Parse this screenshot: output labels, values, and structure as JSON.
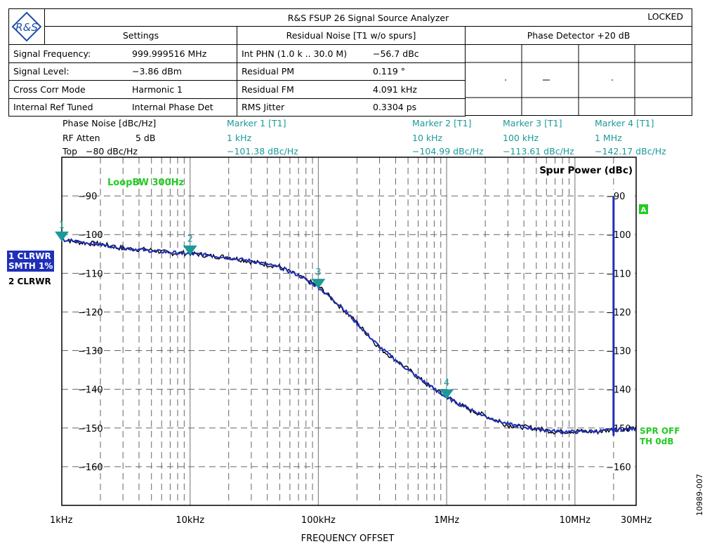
{
  "header": {
    "title": "R&S FSUP 26 Signal Source Analyzer",
    "status": "LOCKED",
    "logo_text": "R&S",
    "settings_title": "Settings",
    "residual_title": "Residual Noise [T1 w/o spurs]",
    "detector_title": "Phase Detector +20 dB",
    "settings_rows": [
      {
        "label": "Signal Frequency:",
        "value": "999.999516 MHz"
      },
      {
        "label": "Signal Level:",
        "value": "−3.86 dBm"
      },
      {
        "label": "Cross Corr Mode",
        "value": "Harmonic 1"
      },
      {
        "label": "Internal Ref Tuned",
        "value": "Internal Phase Det"
      }
    ],
    "residual_rows": [
      {
        "label": "Int PHN (1.0 k .. 30.0 M)",
        "value": "−56.7 dBc"
      },
      {
        "label": "Residual PM",
        "value": "0.119 °"
      },
      {
        "label": "Residual FM",
        "value": "4.091 kHz"
      },
      {
        "label": "RMS Jitter",
        "value": "0.3304 ps"
      }
    ]
  },
  "info": {
    "phase_noise_label": "Phase Noise [dBc/Hz]",
    "rf_atten_label": "RF Atten",
    "rf_atten_value": "5 dB",
    "top_label": "Top",
    "top_value": "−80 dBc/Hz"
  },
  "markers": [
    {
      "name": "Marker 1 [T1]",
      "freq": "1 kHz",
      "level": "−101.38 dBc/Hz"
    },
    {
      "name": "Marker 2 [T1]",
      "freq": "10 kHz",
      "level": "−104.99 dBc/Hz"
    },
    {
      "name": "Marker 3 [T1]",
      "freq": "100 kHz",
      "level": "−113.61 dBc/Hz"
    },
    {
      "name": "Marker 4 [T1]",
      "freq": "1 MHz",
      "level": "−142.17 dBc/Hz"
    }
  ],
  "trace_labels": {
    "trace1_line1": "1 CLRWR",
    "trace1_line2": "SMTH 1%",
    "trace2": "2 CLRWR",
    "loop_bw": "LoopBW 300Hz",
    "spur_power": "Spur Power (dBc)",
    "spr_off": "SPR OFF",
    "th": "TH 0dB",
    "a_badge": "A"
  },
  "figure_id": "10989-007",
  "colors": {
    "trace1": "#1f2fb8",
    "trace2": "#000000",
    "marker": "#1a9a9a",
    "green": "#22cc22"
  },
  "chart_data": {
    "type": "line",
    "xscale": "log",
    "xlim": [
      1000,
      30000000
    ],
    "ylim": [
      -170,
      -80
    ],
    "xlabel": "FREQUENCY OFFSET",
    "ylabel": "",
    "x_tick_values": [
      1000,
      10000,
      100000,
      1000000,
      10000000,
      30000000
    ],
    "x_tick_labels": [
      "1kHz",
      "10kHz",
      "100kHz",
      "1MHz",
      "10MHz",
      "30MHz"
    ],
    "y_tick_values": [
      -90,
      -100,
      -110,
      -120,
      -130,
      -140,
      -150,
      -160
    ],
    "y_tick_labels": [
      "−90",
      "−100",
      "−110",
      "−120",
      "−130",
      "−140",
      "−150",
      "−160"
    ],
    "grid": true,
    "series": [
      {
        "name": "1 CLRWR",
        "x": [
          1000,
          1500,
          2000,
          3000,
          5000,
          7000,
          10000,
          15000,
          20000,
          30000,
          50000,
          70000,
          100000,
          150000,
          200000,
          300000,
          500000,
          700000,
          1000000,
          1500000,
          2000000,
          3000000,
          5000000,
          7000000,
          10000000,
          15000000,
          20000000,
          30000000
        ],
        "y": [
          -101.4,
          -102.0,
          -102.6,
          -103.4,
          -104.2,
          -104.6,
          -104.99,
          -105.4,
          -106.0,
          -106.8,
          -108.5,
          -110.5,
          -113.61,
          -118.5,
          -123.0,
          -129.0,
          -135.0,
          -138.5,
          -142.17,
          -145.0,
          -147.0,
          -149.0,
          -150.3,
          -150.8,
          -151.0,
          -150.8,
          -150.5,
          -150.2
        ]
      },
      {
        "name": "2 CLRWR",
        "x": [
          1000,
          1500,
          2000,
          3000,
          5000,
          7000,
          10000,
          15000,
          20000,
          30000,
          50000,
          70000,
          100000,
          150000,
          200000,
          300000,
          500000,
          700000,
          1000000,
          1500000,
          2000000,
          3000000,
          5000000,
          7000000,
          10000000,
          15000000,
          20000000,
          30000000
        ],
        "y": [
          -101.2,
          -102.2,
          -102.4,
          -103.6,
          -104.0,
          -104.8,
          -104.8,
          -105.6,
          -105.8,
          -107.0,
          -108.3,
          -110.8,
          -113.3,
          -118.8,
          -122.8,
          -129.3,
          -134.8,
          -138.7,
          -141.9,
          -145.3,
          -146.8,
          -149.3,
          -150.1,
          -151.0,
          -150.8,
          -151.0,
          -150.3,
          -150.0
        ]
      }
    ],
    "markers": [
      {
        "label": "1",
        "x": 1000,
        "y": -101.38
      },
      {
        "label": "2",
        "x": 10000,
        "y": -104.99
      },
      {
        "label": "3",
        "x": 100000,
        "y": -113.61
      },
      {
        "label": "4",
        "x": 1000000,
        "y": -142.17
      }
    ],
    "spur": {
      "x": 20000000,
      "y_top": -90,
      "y_bottom": -152
    }
  }
}
